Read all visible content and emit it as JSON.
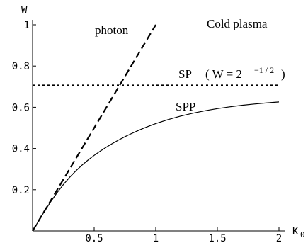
{
  "chart_data": {
    "type": "line",
    "title": "Cold plasma",
    "xlabel": "K",
    "xlabel_sub": "0",
    "ylabel": "W",
    "xlim": [
      0,
      2
    ],
    "ylim": [
      0,
      1
    ],
    "grid": false,
    "x_ticks": [
      {
        "value": 0.5,
        "label": "0.5"
      },
      {
        "value": 1,
        "label": "1"
      },
      {
        "value": 1.5,
        "label": "1.5"
      },
      {
        "value": 2,
        "label": "2"
      }
    ],
    "y_ticks": [
      {
        "value": 0.2,
        "label": "0.2"
      },
      {
        "value": 0.4,
        "label": "0.4"
      },
      {
        "value": 0.6,
        "label": "0.6"
      },
      {
        "value": 0.8,
        "label": "0.8"
      },
      {
        "value": 1,
        "label": "1"
      }
    ],
    "series": [
      {
        "name": "photon",
        "style": "dashed",
        "x": [
          0,
          1
        ],
        "y": [
          0,
          1
        ]
      },
      {
        "name": "SPP",
        "style": "solid",
        "x": [
          0,
          0.05,
          0.1,
          0.15,
          0.2,
          0.25,
          0.3,
          0.35,
          0.4,
          0.45,
          0.5,
          0.55,
          0.6,
          0.65,
          0.7,
          0.75,
          0.8,
          0.85,
          0.9,
          0.95,
          1.0,
          1.1,
          1.2,
          1.3,
          1.4,
          1.5,
          1.6,
          1.7,
          1.8,
          1.9,
          2.0
        ],
        "y": [
          0,
          0.0497,
          0.0981,
          0.144,
          0.1864,
          0.225,
          0.2596,
          0.2906,
          0.3185,
          0.3437,
          0.3666,
          0.3876,
          0.4069,
          0.4249,
          0.4416,
          0.4572,
          0.4717,
          0.4853,
          0.498,
          0.5097,
          0.5207,
          0.5403,
          0.557,
          0.5712,
          0.5832,
          0.5934,
          0.6021,
          0.6095,
          0.6158,
          0.6212,
          0.6258
        ]
      },
      {
        "name": "SP",
        "style": "dotted",
        "x": [
          0,
          2
        ],
        "y": [
          0.7071,
          0.7071
        ]
      }
    ],
    "annotations": {
      "photon": "photon",
      "spp": "SPP",
      "sp": "SP",
      "sp_eq_open": "( W = 2",
      "sp_eq_exp": "−1 / 2",
      "sp_eq_close": ")"
    }
  }
}
